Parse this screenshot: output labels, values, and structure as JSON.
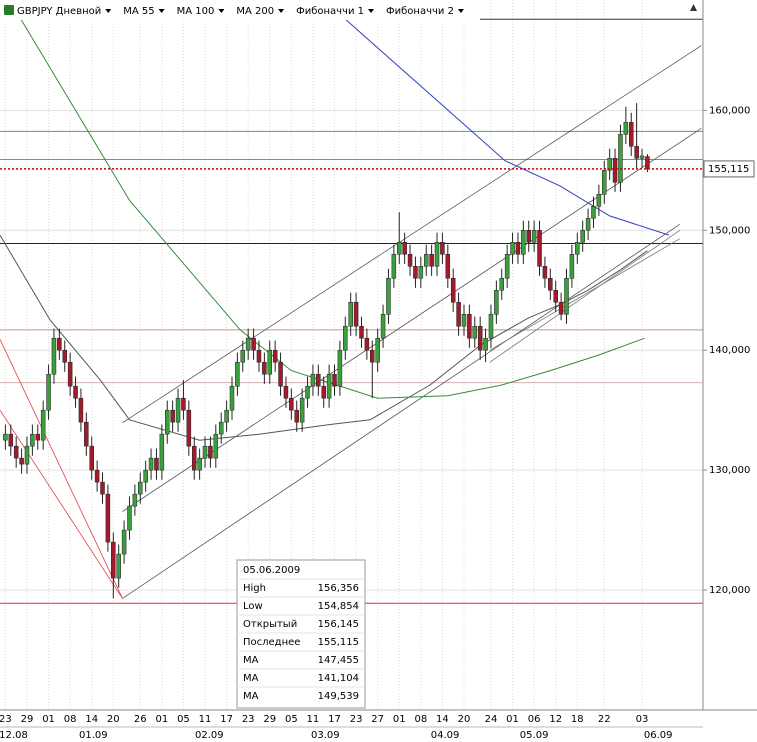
{
  "toolbar": {
    "symbol": "GBPJPY Дневной",
    "items": [
      {
        "label": "MA 55",
        "color": "#000000"
      },
      {
        "label": "MA 100",
        "color": "#1e7a1e"
      },
      {
        "label": "MA 200",
        "color": "#1a2a9a"
      },
      {
        "label": "Фибоначчи 1",
        "color": "#000000"
      },
      {
        "label": "Фибоначчи 2",
        "color": "#000000"
      }
    ]
  },
  "chart_data": {
    "type": "candlestick",
    "xlim": [
      -1,
      129.3
    ],
    "ylim": [
      110,
      169.2
    ],
    "yticks": [
      {
        "value": 120,
        "label": "120,000"
      },
      {
        "value": 130,
        "label": "130,000"
      },
      {
        "value": 140,
        "label": "140,000"
      },
      {
        "value": 150,
        "label": "150,000"
      },
      {
        "value": 160,
        "label": "160,000"
      }
    ],
    "xticks": [
      {
        "value": 0,
        "label": "23"
      },
      {
        "value": 4,
        "label": "29"
      },
      {
        "value": 8,
        "label": "01"
      },
      {
        "value": 12,
        "label": "08"
      },
      {
        "value": 16,
        "label": "14"
      },
      {
        "value": 20,
        "label": "20"
      },
      {
        "value": 25,
        "label": "26"
      },
      {
        "value": 29,
        "label": "01"
      },
      {
        "value": 33,
        "label": "05"
      },
      {
        "value": 37,
        "label": "11"
      },
      {
        "value": 41,
        "label": "17"
      },
      {
        "value": 45,
        "label": "23"
      },
      {
        "value": 49,
        "label": "29"
      },
      {
        "value": 53,
        "label": "05"
      },
      {
        "value": 57,
        "label": "11"
      },
      {
        "value": 61,
        "label": "17"
      },
      {
        "value": 65,
        "label": "23"
      },
      {
        "value": 69,
        "label": "27"
      },
      {
        "value": 73,
        "label": "01"
      },
      {
        "value": 77,
        "label": "08"
      },
      {
        "value": 81,
        "label": "14"
      },
      {
        "value": 85,
        "label": "20"
      },
      {
        "value": 90,
        "label": "24"
      },
      {
        "value": 94,
        "label": "01"
      },
      {
        "value": 98,
        "label": "06"
      },
      {
        "value": 102,
        "label": "12"
      },
      {
        "value": 106,
        "label": "18"
      },
      {
        "value": 111,
        "label": "22"
      },
      {
        "value": 118,
        "label": "03"
      }
    ],
    "month_ticks": [
      {
        "value": 1.5,
        "label": "12.08"
      },
      {
        "value": 16.3,
        "label": "01.09"
      },
      {
        "value": 37.8,
        "label": "02.09"
      },
      {
        "value": 59.3,
        "label": "03.09"
      },
      {
        "value": 81.5,
        "label": "04.09"
      },
      {
        "value": 98,
        "label": "05.09"
      },
      {
        "value": 121,
        "label": "06.09"
      }
    ],
    "grid": true,
    "bull_color": "#3c9e3c",
    "bear_color": "#a01c2c",
    "candles": [
      [
        132.5,
        133.8,
        131.7,
        133
      ],
      [
        133,
        133.8,
        131.2,
        132
      ],
      [
        132,
        132.8,
        130.2,
        131
      ],
      [
        131,
        131.8,
        129.7,
        130.5
      ],
      [
        130.5,
        132.8,
        129.7,
        132
      ],
      [
        132,
        133.8,
        131.2,
        133
      ],
      [
        133,
        133.8,
        131.7,
        132.5
      ],
      [
        132.5,
        135.8,
        131.7,
        135
      ],
      [
        135,
        138.8,
        134.2,
        138
      ],
      [
        138,
        141.8,
        137.2,
        141
      ],
      [
        141,
        141.8,
        139.2,
        140
      ],
      [
        140,
        140.8,
        138.2,
        139
      ],
      [
        139,
        139.8,
        136.2,
        137
      ],
      [
        137,
        137.8,
        135.2,
        136
      ],
      [
        136,
        136.8,
        133.2,
        134
      ],
      [
        134,
        134.8,
        131.2,
        132
      ],
      [
        132,
        132.8,
        129.2,
        130
      ],
      [
        130,
        130.8,
        128.2,
        129
      ],
      [
        129,
        129.8,
        127.2,
        128
      ],
      [
        128,
        128.8,
        123.2,
        124
      ],
      [
        124,
        124.8,
        119.3,
        121
      ],
      [
        121,
        123.8,
        120.2,
        123
      ],
      [
        123,
        125.8,
        122.2,
        125
      ],
      [
        125,
        127.8,
        124.2,
        127
      ],
      [
        127,
        128.8,
        126.2,
        128
      ],
      [
        128,
        129.8,
        127.2,
        129
      ],
      [
        129,
        130.8,
        128.2,
        130
      ],
      [
        130,
        131.8,
        129.2,
        131
      ],
      [
        131,
        131.8,
        129.2,
        130
      ],
      [
        130,
        133.8,
        129.2,
        133
      ],
      [
        133,
        135.8,
        132.2,
        135
      ],
      [
        135,
        135.8,
        133.2,
        134
      ],
      [
        134,
        136.8,
        133.2,
        136
      ],
      [
        136,
        137.5,
        134.2,
        135
      ],
      [
        135,
        135.8,
        131.2,
        132
      ],
      [
        132,
        132.8,
        129.2,
        130
      ],
      [
        130,
        131.8,
        129.2,
        131
      ],
      [
        131,
        132.8,
        130.2,
        132
      ],
      [
        132,
        132.8,
        130.2,
        131
      ],
      [
        131,
        133.8,
        130.2,
        133
      ],
      [
        133,
        134.8,
        132.2,
        134
      ],
      [
        134,
        135.8,
        133.2,
        135
      ],
      [
        135,
        137.8,
        134.2,
        137
      ],
      [
        137,
        139.8,
        136.2,
        139
      ],
      [
        139,
        140.8,
        138.2,
        140
      ],
      [
        140,
        141.8,
        139.2,
        141
      ],
      [
        141,
        141.8,
        139.2,
        140
      ],
      [
        140,
        140.8,
        138.2,
        139
      ],
      [
        139,
        139.8,
        137.2,
        138
      ],
      [
        138,
        140.8,
        137.2,
        140
      ],
      [
        140,
        140.8,
        138.2,
        139
      ],
      [
        139,
        139.8,
        136.2,
        137
      ],
      [
        137,
        137.8,
        135.2,
        136
      ],
      [
        136,
        136.8,
        134.2,
        135
      ],
      [
        135,
        135.8,
        133.2,
        134
      ],
      [
        134,
        136.8,
        133.2,
        136
      ],
      [
        136,
        137.8,
        135.2,
        137
      ],
      [
        137,
        138.8,
        136.2,
        138
      ],
      [
        138,
        138.8,
        136.2,
        137
      ],
      [
        137,
        137.8,
        135.2,
        136
      ],
      [
        136,
        138.8,
        135.2,
        138
      ],
      [
        138,
        138.8,
        136.2,
        137
      ],
      [
        137,
        140.8,
        136.2,
        140
      ],
      [
        140,
        142.8,
        139.2,
        142
      ],
      [
        142,
        144.8,
        141.2,
        144
      ],
      [
        144,
        144.8,
        141.2,
        142
      ],
      [
        142,
        142.8,
        140.2,
        141
      ],
      [
        141,
        141.8,
        139.2,
        140
      ],
      [
        140,
        140.8,
        136,
        139
      ],
      [
        139,
        141.8,
        138.2,
        141
      ],
      [
        141,
        143.8,
        140.2,
        143
      ],
      [
        143,
        146.8,
        142.2,
        146
      ],
      [
        146,
        148.8,
        145.2,
        148
      ],
      [
        148,
        151.5,
        147.2,
        149
      ],
      [
        149,
        149.8,
        147.2,
        148
      ],
      [
        148,
        148.8,
        146.2,
        147
      ],
      [
        147,
        147.8,
        145.2,
        146
      ],
      [
        146,
        147.8,
        145.2,
        147
      ],
      [
        147,
        148.8,
        146.2,
        148
      ],
      [
        148,
        148.8,
        146.2,
        147
      ],
      [
        147,
        149.8,
        146.2,
        149
      ],
      [
        149,
        149.8,
        147.2,
        148
      ],
      [
        148,
        148.8,
        145.2,
        146
      ],
      [
        146,
        146.8,
        143.2,
        144
      ],
      [
        144,
        144.8,
        141.2,
        142
      ],
      [
        142,
        143.8,
        141.2,
        143
      ],
      [
        143,
        143.8,
        140.2,
        141
      ],
      [
        141,
        142.8,
        140.2,
        142
      ],
      [
        142,
        142.8,
        139.2,
        140
      ],
      [
        140,
        141.8,
        139,
        141
      ],
      [
        141,
        143.8,
        140.2,
        143
      ],
      [
        143,
        145.8,
        142.2,
        145
      ],
      [
        145,
        146.8,
        144.2,
        146
      ],
      [
        146,
        148.8,
        145.2,
        148
      ],
      [
        148,
        149.8,
        147.2,
        149
      ],
      [
        149,
        149.8,
        147.2,
        148
      ],
      [
        148,
        150.8,
        147.2,
        150
      ],
      [
        150,
        150.8,
        148.2,
        149
      ],
      [
        149,
        150.8,
        148.2,
        150
      ],
      [
        150,
        150.8,
        146.2,
        147
      ],
      [
        147,
        147.8,
        145.2,
        146
      ],
      [
        146,
        146.8,
        144.2,
        145
      ],
      [
        145,
        145.8,
        143.2,
        144
      ],
      [
        144,
        144.8,
        142.5,
        143
      ],
      [
        143,
        146.8,
        142.2,
        146
      ],
      [
        146,
        148.8,
        145.2,
        148
      ],
      [
        148,
        149.8,
        147.2,
        149
      ],
      [
        149,
        150.8,
        148.2,
        150
      ],
      [
        150,
        151.8,
        149.2,
        151
      ],
      [
        151,
        152.8,
        150.2,
        152
      ],
      [
        152,
        153.8,
        151.2,
        153
      ],
      [
        153,
        155.8,
        152.2,
        155
      ],
      [
        155,
        156.8,
        154.2,
        156
      ],
      [
        156,
        156.8,
        153.2,
        154
      ],
      [
        154,
        158.8,
        153.2,
        158
      ],
      [
        158,
        160.3,
        157.2,
        159
      ],
      [
        159,
        159.8,
        156.2,
        157
      ],
      [
        157,
        160.6,
        155.2,
        156
      ],
      [
        156,
        156.8,
        155.2,
        156.2
      ],
      [
        156.145,
        156.356,
        154.854,
        155.115
      ]
    ],
    "series": [
      {
        "name": "MA 55",
        "color": "#555555",
        "x": [
          -1,
          8.3,
          17.6,
          23,
          36,
          47,
          60,
          67.6,
          78.7,
          88,
          97,
          102.8,
          108,
          114,
          119
        ],
        "values": [
          149.6,
          142.5,
          137.5,
          134.2,
          132.5,
          133,
          133.8,
          134.2,
          137.1,
          140.4,
          142.7,
          143.8,
          145,
          146.7,
          148.3
        ]
      },
      {
        "name": "MA 100",
        "color": "#3a8a3a",
        "x": [
          1,
          23,
          43.5,
          53,
          69,
          82,
          92,
          101,
          110,
          118.5
        ],
        "values": [
          169,
          152.5,
          141.7,
          138.3,
          136,
          136.2,
          137.1,
          138.3,
          139.6,
          141
        ]
      },
      {
        "name": "MA 200",
        "color": "#3340c0",
        "x": [
          59,
          92.6,
          102.8,
          112,
          123
        ],
        "values": [
          169.2,
          155.8,
          153.7,
          151.2,
          149.6
        ]
      }
    ],
    "levels": [
      {
        "value": 167.6,
        "color": "#333333"
      },
      {
        "value": 158.25,
        "color": "#5a9e5a"
      },
      {
        "value": 155.9,
        "color": "#888888"
      },
      {
        "value": 148.9,
        "color": "#222222"
      },
      {
        "value": 141.7,
        "color": "#c49090"
      },
      {
        "value": 137.3,
        "color": "#d8b0b0"
      },
      {
        "value": 118.9,
        "color": "#e03030"
      }
    ],
    "trend_lines": [
      {
        "x": [
          21.7,
          129
        ],
        "y": [
          133.95,
          165.4
        ],
        "color": "#555555"
      },
      {
        "x": [
          21.7,
          129
        ],
        "y": [
          126.55,
          158.5
        ],
        "color": "#555555"
      },
      {
        "x": [
          21.7,
          125
        ],
        "y": [
          119.3,
          150.5
        ],
        "color": "#555555"
      },
      {
        "x": [
          89.8,
          125
        ],
        "y": [
          139,
          150
        ],
        "color": "#777777"
      },
      {
        "x": [
          89.8,
          125
        ],
        "y": [
          140,
          149.3
        ],
        "color": "#777777"
      },
      {
        "x": [
          -1,
          21.7
        ],
        "y": [
          140.9,
          119.3
        ],
        "color": "#e04040"
      },
      {
        "x": [
          -1,
          21.7
        ],
        "y": [
          135,
          119.3
        ],
        "color": "#e04040"
      }
    ],
    "last_price": {
      "value": 155.115,
      "label": "155,115",
      "color": "#cc0000"
    }
  },
  "info_box": {
    "date": "05.06.2009",
    "rows": [
      {
        "label": "High",
        "value": "156,356",
        "color": "#000000"
      },
      {
        "label": "Low",
        "value": "154,854",
        "color": "#000000"
      },
      {
        "label": "Открытый",
        "value": "156,145",
        "color": "#000000"
      },
      {
        "label": "Последнее",
        "value": "155,115",
        "color": "#000000"
      },
      {
        "label": "MA",
        "value": "147,455",
        "color": "#000000"
      },
      {
        "label": "MA",
        "value": "141,104",
        "color": "#1e7a1e"
      },
      {
        "label": "MA",
        "value": "149,539",
        "color": "#1a2a9a"
      }
    ]
  }
}
